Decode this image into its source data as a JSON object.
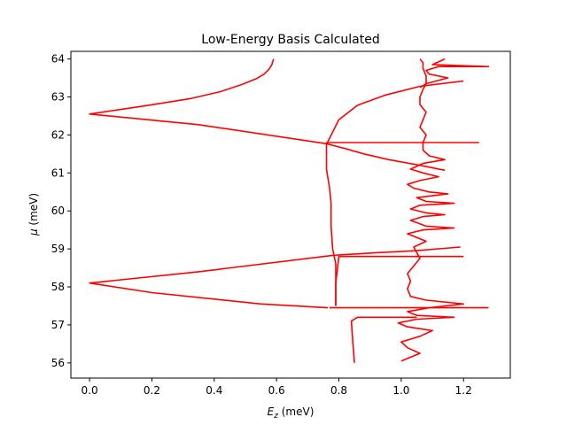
{
  "chart_data": {
    "type": "line",
    "title": "Low-Energy Basis Calculated",
    "xlabel_main": "E",
    "xlabel_sub": "z",
    "xlabel_unit": " (meV)",
    "ylabel_main": "μ",
    "ylabel_unit": " (meV)",
    "xlim": [
      -0.06,
      1.35
    ],
    "ylim": [
      55.6,
      64.2
    ],
    "xticks": [
      0.0,
      0.2,
      0.4,
      0.6,
      0.8,
      1.0,
      1.2
    ],
    "xtick_labels": [
      "0.0",
      "0.2",
      "0.4",
      "0.6",
      "0.8",
      "1.0",
      "1.2"
    ],
    "yticks": [
      56,
      57,
      58,
      59,
      60,
      61,
      62,
      63,
      64
    ],
    "ytick_labels": [
      "56",
      "57",
      "58",
      "59",
      "60",
      "61",
      "62",
      "63",
      "64"
    ],
    "grid": false,
    "series_color": "#ff0000",
    "series": [
      {
        "points": [
          [
            0.59,
            64.0
          ],
          [
            0.585,
            63.85
          ],
          [
            0.575,
            63.72
          ],
          [
            0.56,
            63.6
          ],
          [
            0.535,
            63.48
          ],
          [
            0.49,
            63.33
          ],
          [
            0.42,
            63.14
          ],
          [
            0.32,
            62.95
          ],
          [
            0.18,
            62.77
          ],
          [
            0.0,
            62.55
          ],
          [
            0.35,
            62.27
          ],
          [
            0.76,
            61.77
          ],
          [
            0.82,
            61.64
          ],
          [
            0.88,
            61.5
          ],
          [
            0.96,
            61.35
          ],
          [
            1.06,
            61.2
          ],
          [
            1.14,
            61.07
          ]
        ]
      },
      {
        "points": [
          [
            0.76,
            61.8
          ],
          [
            1.25,
            61.8
          ]
        ]
      },
      {
        "points": [
          [
            0.85,
            56.0
          ],
          [
            0.845,
            56.5
          ],
          [
            0.84,
            57.1
          ],
          [
            0.86,
            57.2
          ],
          [
            1.05,
            57.2
          ]
        ]
      },
      {
        "points": [
          [
            0.79,
            57.5
          ],
          [
            0.79,
            58.1
          ],
          [
            0.8,
            58.8
          ],
          [
            1.2,
            58.8
          ]
        ]
      },
      {
        "points": [
          [
            0.765,
            57.45
          ],
          [
            0.55,
            57.55
          ],
          [
            0.2,
            57.85
          ],
          [
            0.0,
            58.1
          ],
          [
            0.35,
            58.4
          ],
          [
            0.78,
            58.83
          ],
          [
            0.92,
            58.9
          ],
          [
            1.04,
            58.95
          ],
          [
            1.19,
            59.05
          ]
        ]
      },
      {
        "points": [
          [
            0.77,
            57.45
          ],
          [
            1.05,
            57.45
          ],
          [
            1.28,
            57.45
          ]
        ]
      },
      {
        "points": [
          [
            0.76,
            61.8
          ],
          [
            0.76,
            61.1
          ],
          [
            0.77,
            60.6
          ],
          [
            0.775,
            60.2
          ],
          [
            0.775,
            59.6
          ],
          [
            0.78,
            59.0
          ],
          [
            0.79,
            58.6
          ],
          [
            0.79,
            57.9
          ],
          [
            0.79,
            57.5
          ]
        ]
      },
      {
        "points": [
          [
            0.76,
            61.75
          ],
          [
            0.8,
            62.4
          ],
          [
            0.86,
            62.78
          ],
          [
            0.95,
            63.05
          ],
          [
            1.06,
            63.28
          ],
          [
            1.2,
            63.42
          ]
        ]
      },
      {
        "points": [
          [
            1.0,
            56.05
          ],
          [
            1.03,
            56.15
          ],
          [
            1.06,
            56.25
          ],
          [
            1.02,
            56.4
          ],
          [
            1.0,
            56.55
          ],
          [
            1.06,
            56.7
          ],
          [
            1.1,
            56.85
          ],
          [
            1.02,
            56.95
          ],
          [
            0.99,
            57.05
          ],
          [
            1.05,
            57.15
          ],
          [
            1.17,
            57.2
          ],
          [
            1.05,
            57.25
          ],
          [
            1.02,
            57.35
          ],
          [
            1.09,
            57.45
          ],
          [
            1.2,
            57.55
          ],
          [
            1.08,
            57.65
          ],
          [
            1.03,
            57.75
          ],
          [
            1.02,
            57.95
          ],
          [
            1.03,
            58.15
          ],
          [
            1.02,
            58.35
          ],
          [
            1.04,
            58.55
          ],
          [
            1.06,
            58.75
          ],
          [
            1.05,
            58.9
          ],
          [
            1.04,
            59.05
          ],
          [
            1.08,
            59.2
          ],
          [
            1.05,
            59.3
          ],
          [
            1.02,
            59.4
          ],
          [
            1.07,
            59.5
          ],
          [
            1.17,
            59.55
          ],
          [
            1.08,
            59.6
          ],
          [
            1.03,
            59.75
          ],
          [
            1.07,
            59.85
          ],
          [
            1.14,
            59.9
          ],
          [
            1.08,
            59.95
          ],
          [
            1.03,
            60.05
          ],
          [
            1.06,
            60.15
          ],
          [
            1.17,
            60.2
          ],
          [
            1.08,
            60.25
          ],
          [
            1.05,
            60.35
          ],
          [
            1.15,
            60.45
          ],
          [
            1.09,
            60.5
          ],
          [
            1.04,
            60.6
          ],
          [
            1.02,
            60.7
          ],
          [
            1.06,
            60.8
          ],
          [
            1.12,
            60.9
          ],
          [
            1.07,
            61.0
          ],
          [
            1.03,
            61.1
          ],
          [
            1.07,
            61.25
          ],
          [
            1.14,
            61.35
          ],
          [
            1.09,
            61.45
          ],
          [
            1.07,
            61.6
          ],
          [
            1.07,
            61.8
          ],
          [
            1.08,
            62.0
          ],
          [
            1.06,
            62.2
          ],
          [
            1.07,
            62.4
          ],
          [
            1.08,
            62.6
          ],
          [
            1.06,
            62.8
          ],
          [
            1.06,
            63.0
          ],
          [
            1.07,
            63.2
          ],
          [
            1.08,
            63.35
          ],
          [
            1.15,
            63.5
          ],
          [
            1.09,
            63.6
          ],
          [
            1.08,
            63.7
          ],
          [
            1.12,
            63.8
          ],
          [
            1.28,
            63.8
          ],
          [
            1.1,
            63.85
          ],
          [
            1.14,
            64.0
          ]
        ]
      },
      {
        "points": [
          [
            1.06,
            63.25
          ],
          [
            1.08,
            63.35
          ],
          [
            1.08,
            63.55
          ],
          [
            1.07,
            63.75
          ],
          [
            1.07,
            63.9
          ],
          [
            1.06,
            64.0
          ]
        ]
      }
    ]
  }
}
